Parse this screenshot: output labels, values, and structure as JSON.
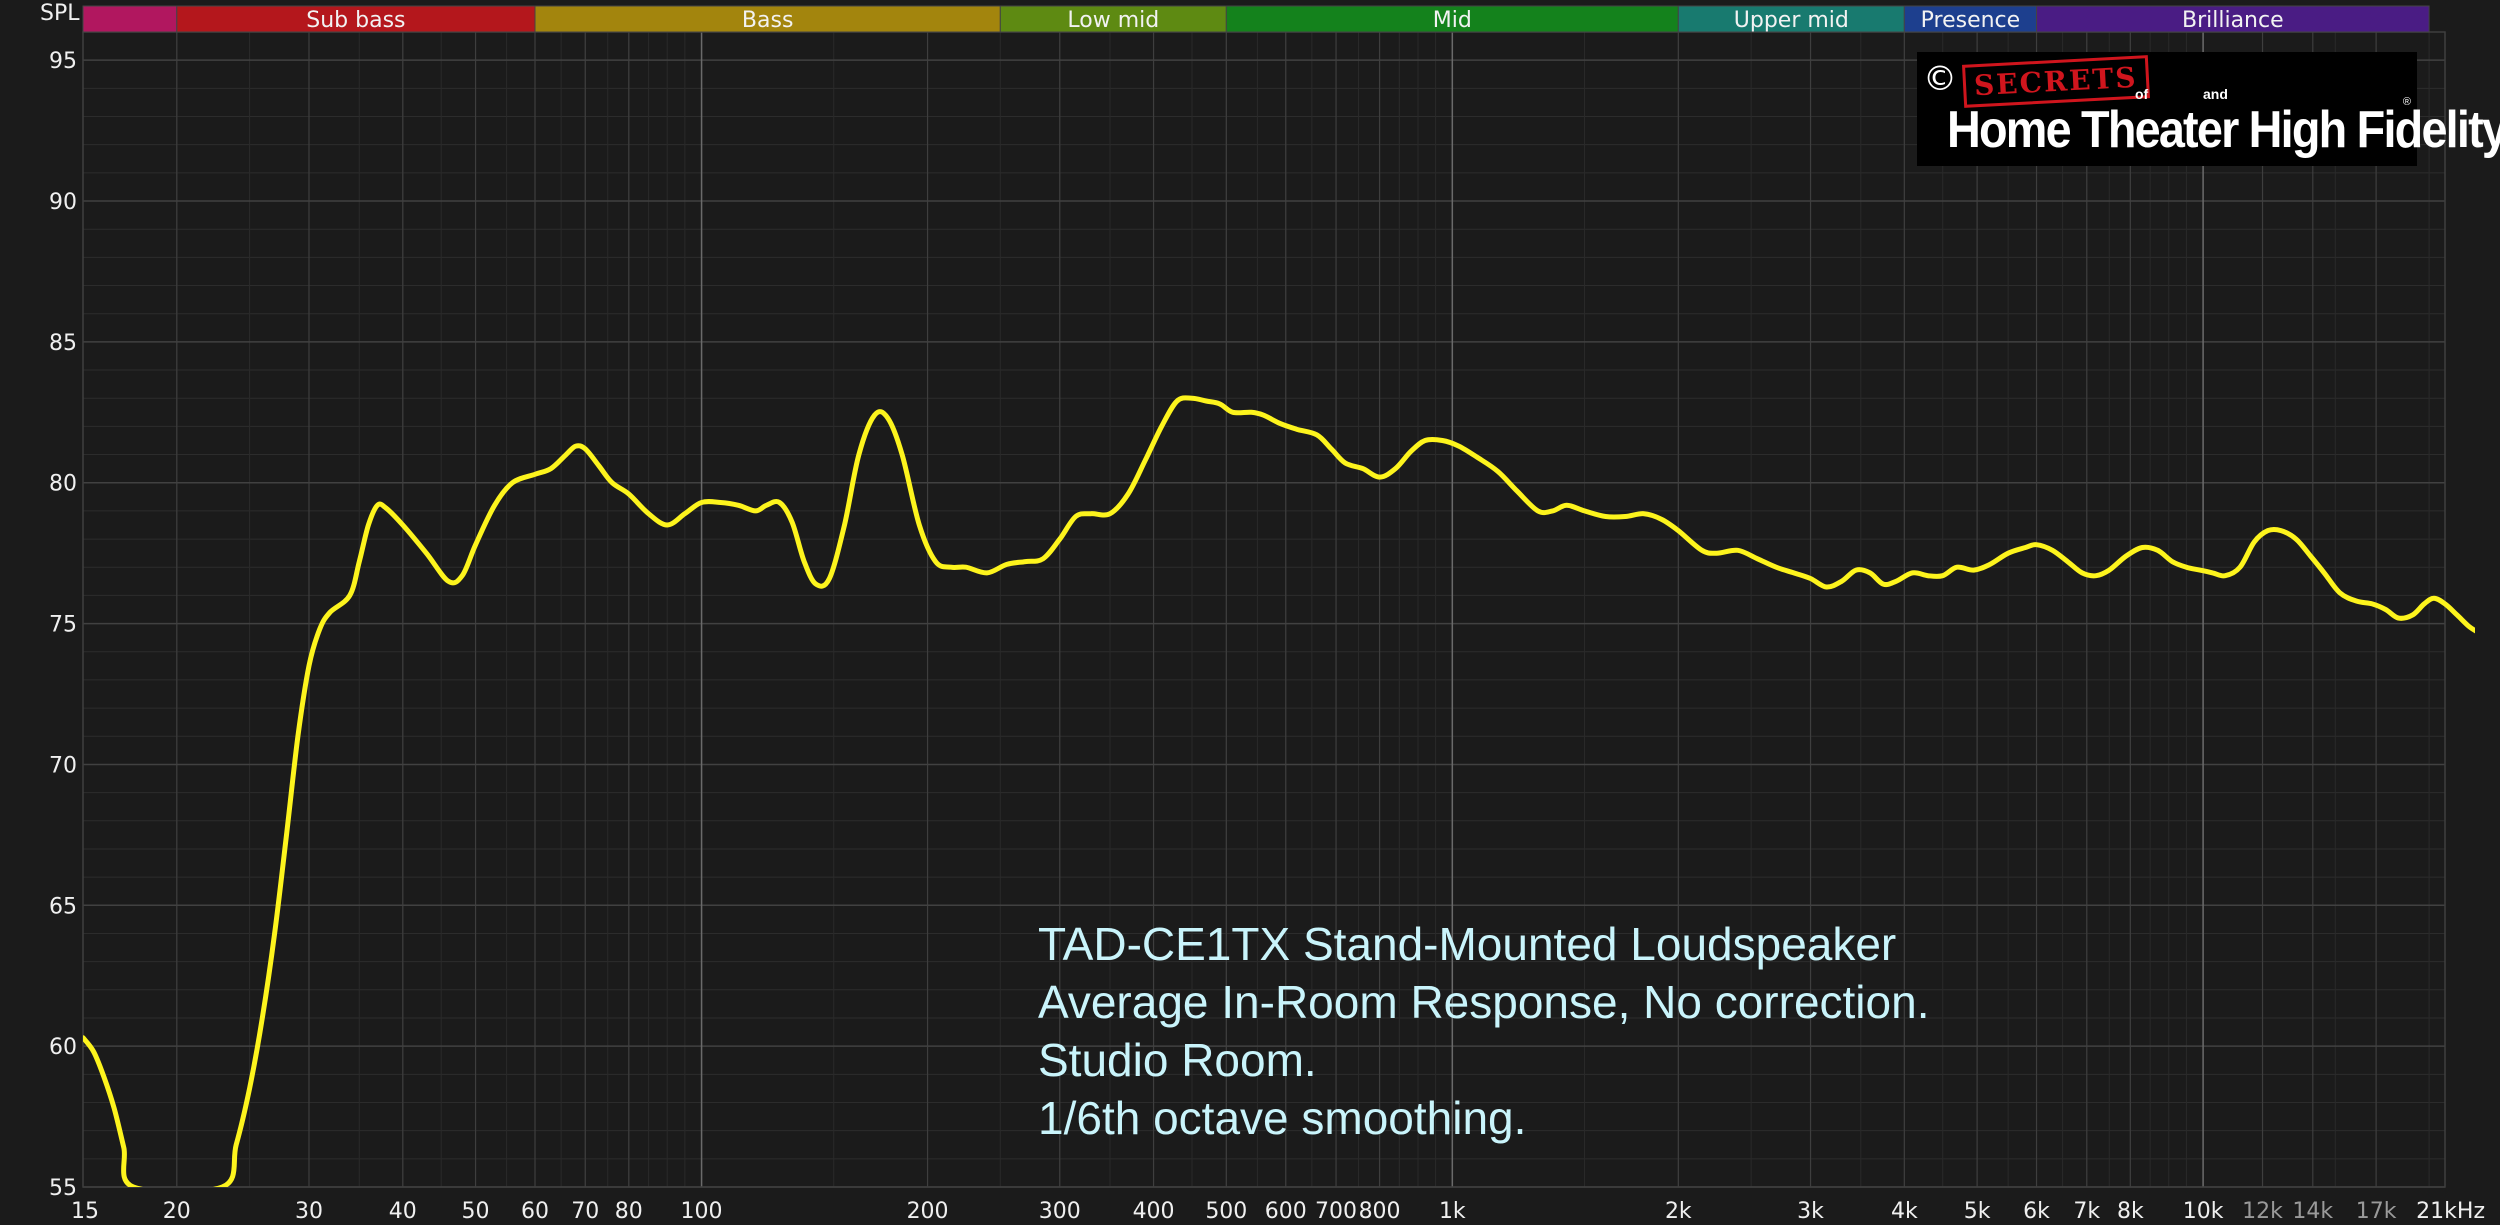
{
  "chart_data": {
    "type": "line",
    "ylabel": "SPL",
    "x_scale": "log",
    "xlim": [
      15,
      21000
    ],
    "ylim": [
      55,
      96
    ],
    "y_ticks": [
      55,
      60,
      65,
      70,
      75,
      80,
      85,
      90,
      95
    ],
    "x_ticks": [
      {
        "v": 15,
        "label": "15",
        "dim": false
      },
      {
        "v": 20,
        "label": "20",
        "dim": false
      },
      {
        "v": 30,
        "label": "30",
        "dim": false
      },
      {
        "v": 40,
        "label": "40",
        "dim": false
      },
      {
        "v": 50,
        "label": "50",
        "dim": false
      },
      {
        "v": 60,
        "label": "60",
        "dim": false
      },
      {
        "v": 70,
        "label": "70",
        "dim": false
      },
      {
        "v": 80,
        "label": "80",
        "dim": false
      },
      {
        "v": 100,
        "label": "100",
        "dim": false
      },
      {
        "v": 200,
        "label": "200",
        "dim": false
      },
      {
        "v": 300,
        "label": "300",
        "dim": false
      },
      {
        "v": 400,
        "label": "400",
        "dim": false
      },
      {
        "v": 500,
        "label": "500",
        "dim": false
      },
      {
        "v": 600,
        "label": "600",
        "dim": false
      },
      {
        "v": 700,
        "label": "700",
        "dim": false
      },
      {
        "v": 800,
        "label": "800",
        "dim": false
      },
      {
        "v": 1000,
        "label": "1k",
        "dim": false
      },
      {
        "v": 2000,
        "label": "2k",
        "dim": false
      },
      {
        "v": 3000,
        "label": "3k",
        "dim": false
      },
      {
        "v": 4000,
        "label": "4k",
        "dim": false
      },
      {
        "v": 5000,
        "label": "5k",
        "dim": false
      },
      {
        "v": 6000,
        "label": "6k",
        "dim": false
      },
      {
        "v": 7000,
        "label": "7k",
        "dim": false
      },
      {
        "v": 8000,
        "label": "8k",
        "dim": false
      },
      {
        "v": 10000,
        "label": "10k",
        "dim": false
      },
      {
        "v": 12000,
        "label": "12k",
        "dim": true
      },
      {
        "v": 14000,
        "label": "14k",
        "dim": true
      },
      {
        "v": 17000,
        "label": "17k",
        "dim": true
      },
      {
        "v": 21000,
        "label": "21kHz",
        "dim": false
      }
    ],
    "major_x_lines": [
      100,
      1000,
      10000
    ],
    "bands": [
      {
        "label": "",
        "from": 15,
        "to": 20,
        "color": "#b1175f"
      },
      {
        "label": "Sub bass",
        "from": 20,
        "to": 60,
        "color": "#b4171c"
      },
      {
        "label": "Bass",
        "from": 60,
        "to": 250,
        "color": "#a3850d"
      },
      {
        "label": "Low mid",
        "from": 250,
        "to": 500,
        "color": "#5e8a12"
      },
      {
        "label": "Mid",
        "from": 500,
        "to": 2000,
        "color": "#14821c"
      },
      {
        "label": "Upper mid",
        "from": 2000,
        "to": 4000,
        "color": "#187a6f"
      },
      {
        "label": "Presence",
        "from": 4000,
        "to": 6000,
        "color": "#1d3f8e"
      },
      {
        "label": "Brilliance",
        "from": 6000,
        "to": 20000,
        "color": "#4a1c84"
      }
    ],
    "series": [
      {
        "color": "#fdf41d",
        "points": [
          [
            15,
            60.3
          ],
          [
            15.5,
            59.8
          ],
          [
            16,
            58.9
          ],
          [
            16.5,
            57.8
          ],
          [
            17,
            56.4
          ],
          [
            17.5,
            55.0
          ],
          [
            23,
            55.0
          ],
          [
            24,
            56.5
          ],
          [
            25,
            58.5
          ],
          [
            26,
            61.0
          ],
          [
            27,
            64.0
          ],
          [
            28,
            67.5
          ],
          [
            29,
            71.0
          ],
          [
            30,
            73.5
          ],
          [
            31,
            74.8
          ],
          [
            32,
            75.4
          ],
          [
            34,
            76.0
          ],
          [
            35,
            77.2
          ],
          [
            36,
            78.5
          ],
          [
            37,
            79.2
          ],
          [
            38,
            79.1
          ],
          [
            40,
            78.5
          ],
          [
            43,
            77.5
          ],
          [
            46,
            76.5
          ],
          [
            48,
            76.7
          ],
          [
            50,
            77.8
          ],
          [
            53,
            79.2
          ],
          [
            56,
            80.0
          ],
          [
            60,
            80.3
          ],
          [
            63,
            80.5
          ],
          [
            66,
            81.0
          ],
          [
            68,
            81.3
          ],
          [
            70,
            81.2
          ],
          [
            73,
            80.6
          ],
          [
            76,
            80.0
          ],
          [
            80,
            79.6
          ],
          [
            85,
            78.9
          ],
          [
            90,
            78.5
          ],
          [
            95,
            78.9
          ],
          [
            100,
            79.3
          ],
          [
            106,
            79.3
          ],
          [
            112,
            79.2
          ],
          [
            118,
            79.0
          ],
          [
            122,
            79.2
          ],
          [
            127,
            79.3
          ],
          [
            132,
            78.6
          ],
          [
            137,
            77.2
          ],
          [
            142,
            76.4
          ],
          [
            148,
            76.6
          ],
          [
            155,
            78.5
          ],
          [
            162,
            81.0
          ],
          [
            170,
            82.4
          ],
          [
            177,
            82.3
          ],
          [
            185,
            81.0
          ],
          [
            195,
            78.5
          ],
          [
            205,
            77.2
          ],
          [
            215,
            77.0
          ],
          [
            225,
            77.0
          ],
          [
            240,
            76.8
          ],
          [
            255,
            77.1
          ],
          [
            270,
            77.2
          ],
          [
            285,
            77.3
          ],
          [
            300,
            78.0
          ],
          [
            315,
            78.8
          ],
          [
            330,
            78.9
          ],
          [
            350,
            78.9
          ],
          [
            370,
            79.6
          ],
          [
            390,
            80.8
          ],
          [
            410,
            82.0
          ],
          [
            430,
            82.9
          ],
          [
            450,
            83.0
          ],
          [
            470,
            82.9
          ],
          [
            490,
            82.8
          ],
          [
            510,
            82.5
          ],
          [
            540,
            82.5
          ],
          [
            560,
            82.4
          ],
          [
            590,
            82.1
          ],
          [
            620,
            81.9
          ],
          [
            660,
            81.7
          ],
          [
            690,
            81.2
          ],
          [
            720,
            80.7
          ],
          [
            760,
            80.5
          ],
          [
            800,
            80.2
          ],
          [
            840,
            80.5
          ],
          [
            880,
            81.1
          ],
          [
            920,
            81.5
          ],
          [
            970,
            81.5
          ],
          [
            1020,
            81.3
          ],
          [
            1080,
            80.9
          ],
          [
            1150,
            80.4
          ],
          [
            1220,
            79.7
          ],
          [
            1300,
            79.0
          ],
          [
            1360,
            79.0
          ],
          [
            1420,
            79.2
          ],
          [
            1500,
            79.0
          ],
          [
            1600,
            78.8
          ],
          [
            1700,
            78.8
          ],
          [
            1800,
            78.9
          ],
          [
            1900,
            78.7
          ],
          [
            2000,
            78.3
          ],
          [
            2150,
            77.6
          ],
          [
            2250,
            77.5
          ],
          [
            2400,
            77.6
          ],
          [
            2550,
            77.3
          ],
          [
            2700,
            77.0
          ],
          [
            2850,
            76.8
          ],
          [
            3000,
            76.6
          ],
          [
            3150,
            76.3
          ],
          [
            3300,
            76.5
          ],
          [
            3450,
            76.9
          ],
          [
            3600,
            76.8
          ],
          [
            3750,
            76.4
          ],
          [
            3900,
            76.5
          ],
          [
            4100,
            76.8
          ],
          [
            4300,
            76.7
          ],
          [
            4500,
            76.7
          ],
          [
            4700,
            77.0
          ],
          [
            4950,
            76.9
          ],
          [
            5200,
            77.1
          ],
          [
            5500,
            77.5
          ],
          [
            5800,
            77.7
          ],
          [
            6000,
            77.8
          ],
          [
            6300,
            77.6
          ],
          [
            6600,
            77.2
          ],
          [
            6900,
            76.8
          ],
          [
            7200,
            76.7
          ],
          [
            7500,
            76.9
          ],
          [
            7900,
            77.4
          ],
          [
            8300,
            77.7
          ],
          [
            8700,
            77.6
          ],
          [
            9100,
            77.2
          ],
          [
            9500,
            77.0
          ],
          [
            9900,
            76.9
          ],
          [
            10300,
            76.8
          ],
          [
            10700,
            76.7
          ],
          [
            11200,
            77.0
          ],
          [
            11700,
            77.9
          ],
          [
            12200,
            78.3
          ],
          [
            12700,
            78.3
          ],
          [
            13300,
            78.0
          ],
          [
            13900,
            77.4
          ],
          [
            14500,
            76.8
          ],
          [
            15200,
            76.1
          ],
          [
            16000,
            75.8
          ],
          [
            16800,
            75.7
          ],
          [
            17500,
            75.5
          ],
          [
            18200,
            75.2
          ],
          [
            19000,
            75.3
          ],
          [
            19700,
            75.7
          ],
          [
            20300,
            75.9
          ],
          [
            21000,
            75.7
          ],
          [
            21800,
            75.3
          ],
          [
            22600,
            74.9
          ],
          [
            23200,
            74.7
          ]
        ]
      }
    ],
    "annotations": [
      "TAD-CE1TX Stand-Mounted Loudspeaker",
      "Average In-Room Response, No correction.",
      "Studio Room.",
      "1/6th octave smoothing."
    ]
  },
  "logo": {
    "copyright_symbol": "©",
    "secrets": "SECRETS",
    "of": "of",
    "and": "and",
    "main": "Home Theater High Fidelity",
    "registered": "®"
  }
}
